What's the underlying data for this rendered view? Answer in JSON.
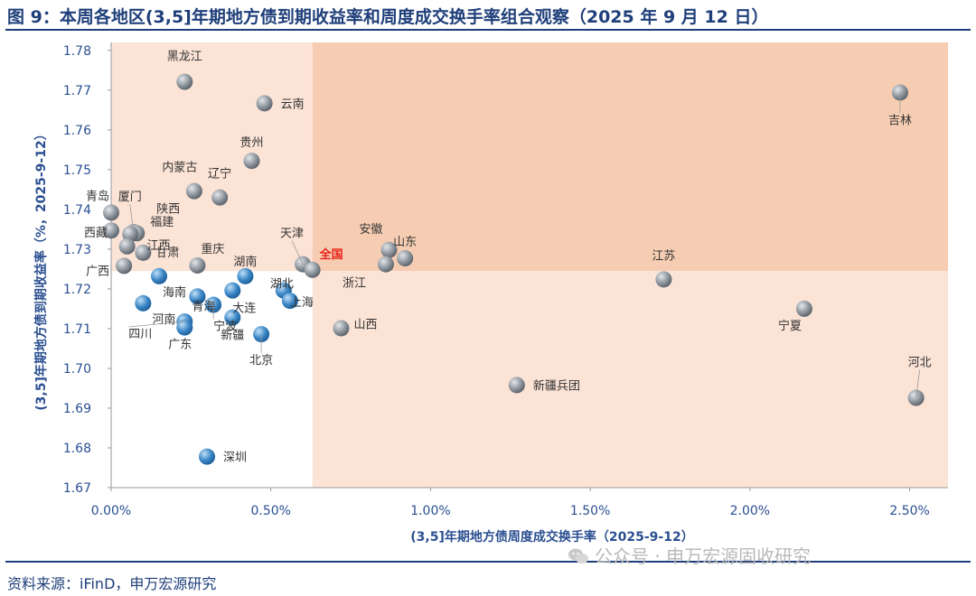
{
  "title": "图 9：本周各地区(3,5]年期地方债到期收益率和周度成交换手率组合观察（2025 年 9 月 12 日）",
  "source": "资料来源：iFinD，申万宏源研究",
  "watermark": "公众号 · 申万宏源固收研究",
  "watermark_icon": "wechat-icon",
  "colors": {
    "title": "#1f3f7a",
    "axis_text": "#2b4f91",
    "quad_light": "#fbe3d6",
    "quad_dark": "#f6cdb2",
    "point_blue": "#3b86c6",
    "point_gray": "#8e969e",
    "highlight": "#e8221b"
  },
  "chart_data": {
    "type": "scatter",
    "xlabel": "(3,5]年期地方债周度成交换手率（2025-9-12）",
    "ylabel": "(3,5]年期地方债到期收益率（%，2025-9-12）",
    "xlim": [
      0,
      0.0262
    ],
    "ylim": [
      1.67,
      1.782
    ],
    "x_ticks": [
      0,
      0.005,
      0.01,
      0.015,
      0.02,
      0.025
    ],
    "x_tick_labels": [
      "0.00%",
      "0.50%",
      "1.00%",
      "1.50%",
      "2.00%",
      "2.50%"
    ],
    "y_ticks": [
      1.67,
      1.68,
      1.69,
      1.7,
      1.71,
      1.72,
      1.73,
      1.74,
      1.75,
      1.76,
      1.77,
      1.78
    ],
    "y_tick_labels": [
      "1.67",
      "1.68",
      "1.69",
      "1.70",
      "1.71",
      "1.72",
      "1.73",
      "1.74",
      "1.75",
      "1.76",
      "1.77",
      "1.78"
    ],
    "quadrant_split": {
      "x": 0.0063,
      "y": 1.7245
    },
    "grid": false,
    "points": [
      {
        "name": "黑龙江",
        "x": 0.0023,
        "y": 1.7721
      },
      {
        "name": "云南",
        "x": 0.0048,
        "y": 1.7667
      },
      {
        "name": "贵州",
        "x": 0.0044,
        "y": 1.7522
      },
      {
        "name": "内蒙古",
        "x": 0.0026,
        "y": 1.7446
      },
      {
        "name": "辽宁",
        "x": 0.0034,
        "y": 1.743
      },
      {
        "name": "青岛",
        "x": 0.0,
        "y": 1.7392
      },
      {
        "name": "厦门",
        "x": 0.0007,
        "y": 1.7343
      },
      {
        "name": "陕西",
        "x": 0.0008,
        "y": 1.734
      },
      {
        "name": "福建",
        "x": 0.0006,
        "y": 1.7338
      },
      {
        "name": "江西",
        "x": 0.0005,
        "y": 1.7307
      },
      {
        "name": "西藏",
        "x": 0.0,
        "y": 1.7347
      },
      {
        "name": "甘肃",
        "x": 0.001,
        "y": 1.7291
      },
      {
        "name": "广西",
        "x": 0.0004,
        "y": 1.7258
      },
      {
        "name": "重庆",
        "x": 0.0027,
        "y": 1.7259
      },
      {
        "name": "湖南",
        "x": 0.0042,
        "y": 1.7232
      },
      {
        "name": "天津",
        "x": 0.006,
        "y": 1.7262
      },
      {
        "name": "全国",
        "x": 0.0063,
        "y": 1.7248,
        "highlight": true
      },
      {
        "name": "安徽",
        "x": 0.0087,
        "y": 1.7298
      },
      {
        "name": "山东",
        "x": 0.0092,
        "y": 1.7277
      },
      {
        "name": "浙江",
        "x": 0.0086,
        "y": 1.7262
      },
      {
        "name": "湖北",
        "x": 0.0054,
        "y": 1.7196
      },
      {
        "name": "上海",
        "x": 0.0056,
        "y": 1.717
      },
      {
        "name": "海南",
        "x": 0.0015,
        "y": 1.7232
      },
      {
        "name": "大连",
        "x": 0.0038,
        "y": 1.7196
      },
      {
        "name": "青海",
        "x": 0.0027,
        "y": 1.7181
      },
      {
        "name": "河南",
        "x": 0.001,
        "y": 1.7164
      },
      {
        "name": "宁波",
        "x": 0.0032,
        "y": 1.716
      },
      {
        "name": "新疆",
        "x": 0.0038,
        "y": 1.7128
      },
      {
        "name": "四川",
        "x": 0.0023,
        "y": 1.7118
      },
      {
        "name": "广东",
        "x": 0.0023,
        "y": 1.7103
      },
      {
        "name": "北京",
        "x": 0.0047,
        "y": 1.7086
      },
      {
        "name": "山西",
        "x": 0.0072,
        "y": 1.7101
      },
      {
        "name": "江苏",
        "x": 0.0173,
        "y": 1.7224
      },
      {
        "name": "宁夏",
        "x": 0.0217,
        "y": 1.715
      },
      {
        "name": "吉林",
        "x": 0.0247,
        "y": 1.7694
      },
      {
        "name": "河北",
        "x": 0.0252,
        "y": 1.6926
      },
      {
        "name": "新疆兵团",
        "x": 0.0127,
        "y": 1.6958
      },
      {
        "name": "深圳",
        "x": 0.003,
        "y": 1.6778
      }
    ]
  }
}
